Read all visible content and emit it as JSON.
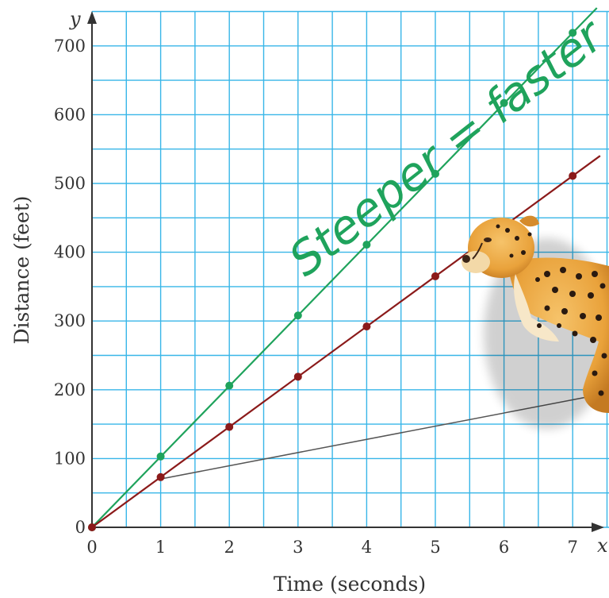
{
  "chart_data": {
    "type": "line",
    "title": "",
    "xlabel": "Time (seconds)",
    "ylabel": "Distance (feet)",
    "x_var": "x",
    "y_var": "y",
    "xlim": [
      0,
      7.4
    ],
    "ylim": [
      0,
      750
    ],
    "x_ticks": [
      "0",
      "1",
      "2",
      "3",
      "4",
      "5",
      "6",
      "7"
    ],
    "y_ticks": [
      "0",
      "100",
      "200",
      "300",
      "400",
      "500",
      "600",
      "700"
    ],
    "grid": true,
    "x": [
      0,
      1,
      2,
      3,
      4,
      5,
      6,
      7
    ],
    "series": [
      {
        "color": "#1fa35c",
        "values": [
          0,
          103,
          206,
          308,
          411,
          514,
          617,
          719
        ]
      },
      {
        "color": "#8b1a1a",
        "values": [
          0,
          73,
          146,
          219,
          292,
          365,
          438,
          511
        ]
      }
    ],
    "annotations": [
      {
        "text": "Steeper = faster",
        "color": "#1fa35c"
      }
    ],
    "colors": {
      "grid": "#38b6e8",
      "axis": "#333333",
      "pointer": "#555555"
    },
    "image": "cheetah"
  }
}
